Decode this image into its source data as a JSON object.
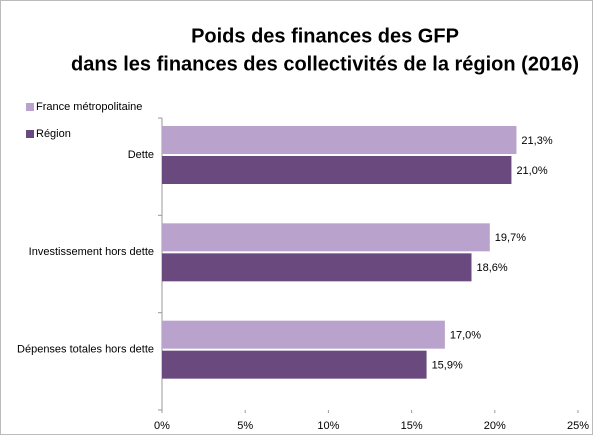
{
  "chart_data": {
    "type": "bar",
    "orientation": "horizontal",
    "title": [
      "Poids des finances des GFP",
      "dans les finances des collectivités de la région (2016)"
    ],
    "categories": [
      "Dette",
      "Investissement hors dette",
      "Dépenses totales hors dette"
    ],
    "series": [
      {
        "name": "France métropolitaine",
        "color": "#b9a2cb",
        "values": [
          21.3,
          19.7,
          17.0
        ],
        "value_labels": [
          "21,3%",
          "19,7%",
          "17,0%"
        ]
      },
      {
        "name": "Région",
        "color": "#6a4a7e",
        "values": [
          21.0,
          18.6,
          15.9
        ],
        "value_labels": [
          "21,0%",
          "18,6%",
          "15,9%"
        ]
      }
    ],
    "xlim": [
      0,
      25
    ],
    "xticks": [
      {
        "value": 0,
        "label": "0%"
      },
      {
        "value": 5,
        "label": "5%"
      },
      {
        "value": 10,
        "label": "10%"
      },
      {
        "value": 15,
        "label": "15%"
      },
      {
        "value": 20,
        "label": "20%"
      },
      {
        "value": 25,
        "label": "25%"
      }
    ],
    "legend": "top-left"
  }
}
